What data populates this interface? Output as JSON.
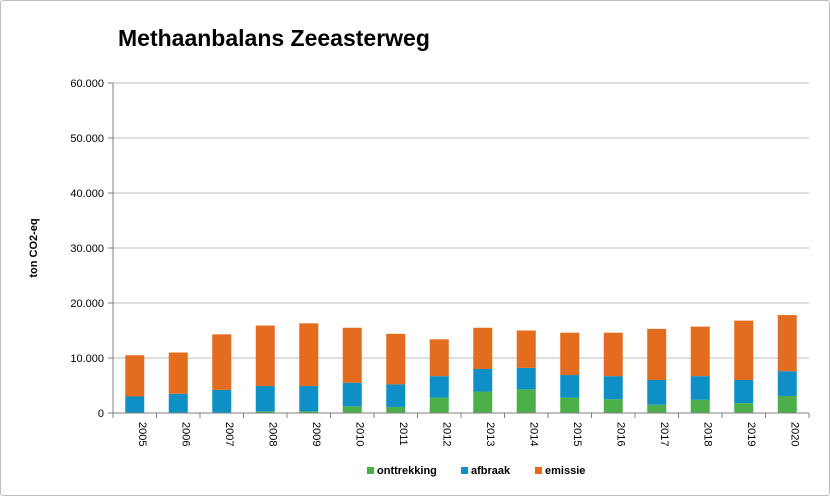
{
  "chart_data": {
    "type": "bar",
    "stacked": true,
    "title": "Methaanbalans Zeeasterweg",
    "xlabel": "",
    "ylabel": "ton CO2-eq",
    "ylim": [
      0,
      60000
    ],
    "yticks": [
      0,
      10000,
      20000,
      30000,
      40000,
      50000,
      60000
    ],
    "ytick_labels": [
      "0",
      "10.000",
      "20.000",
      "30.000",
      "40.000",
      "50.000",
      "60.000"
    ],
    "grid": true,
    "legend_position": "bottom",
    "categories": [
      "2005",
      "2006",
      "2007",
      "2008",
      "2009",
      "2010",
      "2011",
      "2012",
      "2013",
      "2014",
      "2015",
      "2016",
      "2017",
      "2018",
      "2019",
      "2020"
    ],
    "series": [
      {
        "name": "onttrekking",
        "color": "#4daf4a",
        "values": [
          0,
          0,
          0,
          300,
          300,
          1200,
          1100,
          2800,
          3900,
          4300,
          2800,
          2500,
          1500,
          2400,
          1800,
          3100
        ]
      },
      {
        "name": "afbraak",
        "color": "#0e8fc6",
        "values": [
          3000,
          3500,
          4200,
          4600,
          4600,
          4300,
          4100,
          3900,
          4100,
          3900,
          4100,
          4200,
          4500,
          4300,
          4200,
          4500
        ]
      },
      {
        "name": "emissie",
        "color": "#e36c1e",
        "values": [
          7500,
          7500,
          10100,
          11000,
          11400,
          10000,
          9200,
          6700,
          7500,
          6800,
          7700,
          7900,
          9300,
          9000,
          10800,
          10200
        ]
      }
    ]
  }
}
